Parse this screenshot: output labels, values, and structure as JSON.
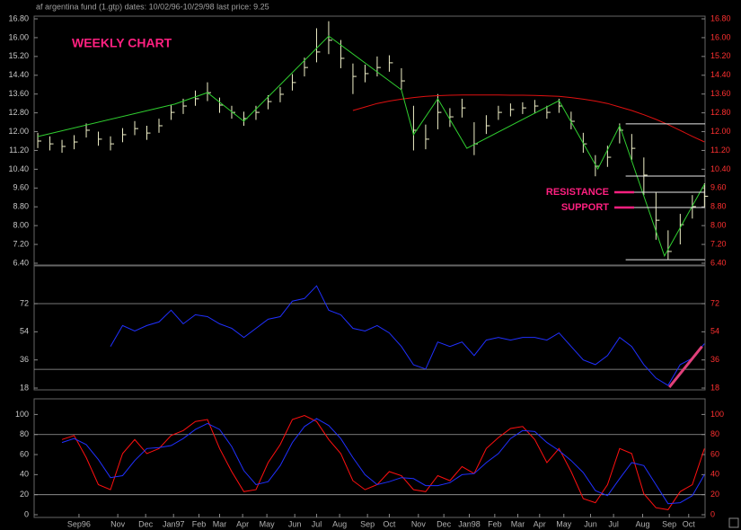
{
  "header": "af argentina fund (1.gtp)   dates: 10/02/96-10/29/98   last price: 9.25",
  "chart_data": [
    {
      "type": "ohlc",
      "title": "WEEKLY CHART",
      "title_color": "#ff2080",
      "xlim": [
        -0.3,
        55.05
      ],
      "ylim": [
        6.4,
        16.8
      ],
      "yticks": [
        {
          "value": 6.4,
          "label": "6.40"
        },
        {
          "value": 7.2,
          "label": "7.20"
        },
        {
          "value": 8.0,
          "label": "8.00"
        },
        {
          "value": 8.8,
          "label": "8.80"
        },
        {
          "value": 9.6,
          "label": "9.60"
        },
        {
          "value": 10.4,
          "label": "10.40"
        },
        {
          "value": 11.2,
          "label": "11.20"
        },
        {
          "value": 12.0,
          "label": "12.00"
        },
        {
          "value": 12.8,
          "label": "12.80"
        },
        {
          "value": 13.6,
          "label": "13.60"
        },
        {
          "value": 14.4,
          "label": "14.40"
        },
        {
          "value": 15.2,
          "label": "15.20"
        },
        {
          "value": 16.0,
          "label": "16.00"
        },
        {
          "value": 16.8,
          "label": "16.80"
        }
      ],
      "color": "#f0f0c8",
      "high": [
        11.95,
        11.8,
        11.65,
        11.85,
        12.35,
        12.0,
        11.8,
        12.15,
        12.45,
        12.25,
        12.55,
        13.15,
        13.4,
        13.75,
        14.1,
        13.45,
        13.1,
        12.85,
        13.1,
        13.55,
        13.9,
        14.45,
        15.15,
        16.4,
        16.7,
        15.9,
        14.9,
        14.85,
        15.2,
        15.25,
        14.7,
        13.1,
        12.3,
        13.6,
        13.0,
        13.4,
        12.4,
        12.7,
        13.1,
        13.2,
        13.25,
        13.35,
        13.1,
        13.4,
        12.85,
        11.95,
        11.0,
        11.4,
        12.35,
        11.9,
        10.9,
        9.4,
        7.8,
        8.5,
        9.3,
        9.8
      ],
      "low": [
        11.3,
        11.2,
        11.1,
        11.25,
        11.75,
        11.4,
        11.2,
        11.55,
        11.85,
        11.65,
        11.95,
        12.5,
        12.75,
        13.1,
        13.3,
        12.8,
        12.55,
        12.25,
        12.5,
        12.95,
        13.25,
        13.75,
        14.35,
        14.95,
        15.3,
        14.7,
        13.6,
        14.1,
        14.35,
        14.55,
        13.8,
        11.2,
        11.25,
        12.1,
        12.2,
        12.6,
        11.0,
        11.9,
        12.5,
        12.65,
        12.75,
        12.8,
        12.55,
        12.8,
        12.1,
        11.1,
        10.1,
        10.5,
        11.5,
        10.8,
        9.3,
        7.4,
        6.55,
        7.2,
        8.3,
        8.8
      ],
      "close": [
        11.6,
        11.48,
        11.37,
        11.56,
        12.06,
        11.68,
        11.48,
        11.87,
        12.13,
        11.94,
        12.25,
        12.82,
        13.09,
        13.4,
        13.66,
        13.13,
        12.82,
        12.56,
        12.82,
        13.28,
        13.59,
        14.09,
        14.73,
        15.39,
        15.89,
        15.12,
        14.35,
        14.47,
        14.73,
        14.93,
        14.16,
        12.06,
        11.68,
        12.82,
        12.63,
        13.01,
        11.48,
        12.25,
        12.82,
        12.94,
        13.01,
        13.09,
        12.82,
        13.09,
        12.44,
        11.48,
        10.53,
        10.91,
        12.06,
        11.29,
        10.15,
        8.23,
        6.9,
        8.04,
        8.81,
        9.25
      ],
      "ma": {
        "color": "#e01010",
        "values": [
          null,
          null,
          null,
          null,
          null,
          null,
          null,
          null,
          null,
          null,
          null,
          null,
          null,
          null,
          null,
          null,
          null,
          null,
          null,
          null,
          null,
          null,
          null,
          null,
          null,
          null,
          12.9,
          13.05,
          13.2,
          13.3,
          13.38,
          13.45,
          13.5,
          13.53,
          13.55,
          13.56,
          13.56,
          13.56,
          13.56,
          13.55,
          13.55,
          13.54,
          13.52,
          13.5,
          13.45,
          13.38,
          13.3,
          13.2,
          13.05,
          12.9,
          12.72,
          12.52,
          12.3,
          12.05,
          11.8,
          11.56
        ]
      },
      "trend": {
        "color": "#30d030",
        "x": [
          0,
          11.3,
          14,
          17,
          24,
          30,
          31,
          33,
          35.4,
          43,
          46.2,
          48,
          51.7,
          55
        ],
        "values": [
          11.79,
          13.17,
          13.66,
          12.44,
          16.07,
          13.78,
          11.87,
          13.4,
          11.29,
          13.32,
          10.41,
          12.25,
          6.71,
          9.76
        ]
      },
      "levels": {
        "color": "#e8e8e8",
        "x_from": 48.5,
        "values": [
          12.33,
          10.11,
          9.42,
          8.77,
          6.55
        ]
      },
      "annotations": [
        {
          "text": "RESISTANCE",
          "value": 9.42
        },
        {
          "text": "SUPPORT",
          "value": 8.77
        }
      ],
      "annotation_color": "#ff2080"
    },
    {
      "type": "line",
      "xlim": [
        -0.3,
        55.05
      ],
      "ylim": [
        18,
        95
      ],
      "yticks": [
        18,
        36,
        54,
        72
      ],
      "levels": [
        72,
        30
      ],
      "series": [
        {
          "color": "#2030ff",
          "values": [
            null,
            null,
            null,
            null,
            null,
            null,
            44.6,
            58,
            54.5,
            58,
            60.3,
            67.8,
            59.1,
            64.9,
            63.7,
            59.1,
            56.2,
            50.4,
            56.2,
            62,
            63.7,
            73.6,
            75.3,
            83.4,
            67.8,
            64.9,
            56.2,
            54.5,
            58,
            53.3,
            44.6,
            32.9,
            30.2,
            47.5,
            44.6,
            47.5,
            38.8,
            48.7,
            50.4,
            48.7,
            50.4,
            50.4,
            48.7,
            53.3,
            44.6,
            36,
            33,
            38.8,
            50.4,
            44.6,
            33,
            24.4,
            19.7,
            33,
            37.1,
            46.4
          ]
        }
      ],
      "trendline": {
        "color": "#e0407a",
        "x": [
          52.1,
          54.8
        ],
        "values": [
          18.6,
          44.6
        ]
      }
    },
    {
      "type": "line",
      "xlim": [
        -0.3,
        55.05
      ],
      "ylim": [
        0,
        112
      ],
      "yticks": [
        0,
        20,
        40,
        60,
        80,
        100
      ],
      "levels": [
        80,
        20
      ],
      "series": [
        {
          "color": "#ff1010",
          "values": [
            null,
            null,
            75,
            79,
            57,
            30,
            25,
            61,
            75,
            61,
            66,
            79,
            84,
            93,
            95,
            66,
            43,
            23,
            25,
            52,
            70,
            95,
            99,
            93,
            75,
            61,
            34,
            25,
            30,
            43,
            39,
            25,
            23,
            39,
            34,
            48,
            41,
            66,
            77,
            86,
            88,
            75,
            52,
            66,
            43,
            16,
            12,
            30,
            66,
            61,
            21,
            7,
            5,
            23,
            30,
            66
          ]
        },
        {
          "color": "#2030ff",
          "values": [
            null,
            null,
            72,
            76,
            70,
            55,
            37,
            39,
            54,
            66,
            67,
            69,
            76,
            85,
            91,
            85,
            68,
            44,
            30,
            33,
            49,
            72,
            88,
            96,
            89,
            76,
            57,
            40,
            30,
            33,
            37,
            36,
            29,
            29,
            32,
            40,
            41,
            52,
            61,
            76,
            84,
            83,
            72,
            64,
            54,
            42,
            24,
            19,
            36,
            52,
            49,
            30,
            11,
            12,
            19,
            40
          ]
        }
      ],
      "xticks": [
        {
          "value": 3.4,
          "label": "Sep96"
        },
        {
          "value": 6.6,
          "label": "Nov"
        },
        {
          "value": 8.9,
          "label": "Dec"
        },
        {
          "value": 11.2,
          "label": "Jan97"
        },
        {
          "value": 13.3,
          "label": "Feb"
        },
        {
          "value": 15,
          "label": "Mar"
        },
        {
          "value": 16.9,
          "label": "Apr"
        },
        {
          "value": 18.9,
          "label": "May"
        },
        {
          "value": 21.2,
          "label": "Jun"
        },
        {
          "value": 23,
          "label": "Jul"
        },
        {
          "value": 24.9,
          "label": "Aug"
        },
        {
          "value": 27.2,
          "label": "Sep"
        },
        {
          "value": 29,
          "label": "Oct"
        },
        {
          "value": 31.4,
          "label": "Nov"
        },
        {
          "value": 33.5,
          "label": "Dec"
        },
        {
          "value": 35.6,
          "label": "Jan98"
        },
        {
          "value": 37.7,
          "label": "Feb"
        },
        {
          "value": 39.6,
          "label": "Mar"
        },
        {
          "value": 41.4,
          "label": "Apr"
        },
        {
          "value": 43.4,
          "label": "May"
        },
        {
          "value": 45.6,
          "label": "Jun"
        },
        {
          "value": 47.5,
          "label": "Jul"
        },
        {
          "value": 49.9,
          "label": "Aug"
        },
        {
          "value": 52.1,
          "label": "Sep"
        },
        {
          "value": 53.7,
          "label": "Oct"
        }
      ]
    }
  ]
}
